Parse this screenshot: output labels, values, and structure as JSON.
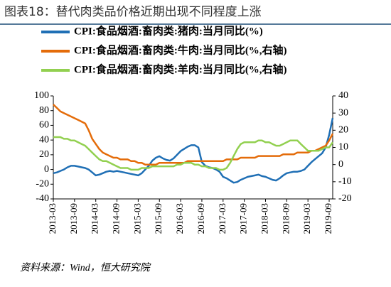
{
  "chart_data": {
    "type": "line",
    "title": "图表18：替代肉类品价格近期出现不同程度上涨",
    "source": "资料来源：Wind，恒大研究院",
    "categories": [
      "2013-03",
      null,
      null,
      null,
      null,
      null,
      "2013-09",
      null,
      null,
      null,
      null,
      null,
      "2014-03",
      null,
      null,
      null,
      null,
      null,
      "2014-09",
      null,
      null,
      null,
      null,
      null,
      "2015-03",
      null,
      null,
      null,
      null,
      null,
      "2015-09",
      null,
      null,
      null,
      null,
      null,
      "2016-03",
      null,
      null,
      null,
      null,
      null,
      "2016-09",
      null,
      null,
      null,
      null,
      null,
      "2017-03",
      null,
      null,
      null,
      null,
      null,
      "2017-09",
      null,
      null,
      null,
      null,
      null,
      "2018-03",
      null,
      null,
      null,
      null,
      null,
      "2018-09",
      null,
      null,
      null,
      null,
      null,
      "2019-03",
      null,
      null,
      null,
      null,
      null,
      "2019-09",
      null
    ],
    "series": [
      {
        "name": "CPI:食品烟酒:畜肉类:猪肉:当月同比(%)",
        "color": "#1f6fb5",
        "axis": "y",
        "values": [
          -5,
          -4,
          -2,
          0,
          3,
          5,
          5,
          4,
          3,
          2,
          0,
          -4,
          -8,
          -7,
          -5,
          -3,
          -2,
          -3,
          -2,
          -3,
          -4,
          -5,
          -6,
          -7,
          -8,
          -5,
          0,
          5,
          12,
          16,
          18,
          15,
          13,
          12,
          15,
          20,
          25,
          28,
          31,
          33,
          33,
          30,
          10,
          5,
          3,
          2,
          0,
          -3,
          -10,
          -12,
          -15,
          -18,
          -17,
          -14,
          -12,
          -10,
          -9,
          -8,
          -7,
          -9,
          -10,
          -12,
          -14,
          -15,
          -12,
          -8,
          -5,
          -4,
          -3,
          -3,
          -2,
          0,
          5,
          10,
          14,
          18,
          22,
          30,
          47,
          70
        ]
      },
      {
        "name": "CPI:食品烟酒:畜肉类:牛肉:当月同比(%,右轴)",
        "color": "#e46c0a",
        "axis": "y2",
        "values": [
          35,
          33,
          31,
          30,
          29,
          28,
          27,
          26,
          25,
          24,
          20,
          15,
          12,
          9,
          7,
          6,
          5,
          4,
          4,
          3,
          3,
          3,
          2,
          2,
          1,
          1,
          0,
          0,
          0,
          0,
          1,
          1,
          1,
          1,
          1,
          1,
          1,
          1,
          2,
          2,
          2,
          2,
          2,
          2,
          2,
          2,
          2,
          2,
          2,
          3,
          3,
          3,
          3,
          4,
          4,
          4,
          4,
          4,
          5,
          5,
          5,
          5,
          5,
          5,
          5,
          6,
          6,
          6,
          6,
          7,
          7,
          7,
          7,
          8,
          8,
          9,
          10,
          11,
          14,
          18
        ]
      },
      {
        "name": "CPI:食品烟酒:畜肉类:羊肉:当月同比(%,右轴)",
        "color": "#92d050",
        "axis": "y2",
        "values": [
          16,
          16,
          16,
          15,
          15,
          14,
          14,
          13,
          12,
          11,
          9,
          7,
          5,
          3,
          2,
          2,
          1,
          0,
          -1,
          -2,
          -2,
          -2,
          -3,
          -3,
          -3,
          -2,
          -2,
          -2,
          -1,
          -1,
          -1,
          -1,
          -1,
          -1,
          -1,
          0,
          0,
          1,
          1,
          1,
          0,
          0,
          -1,
          -1,
          -2,
          -2,
          -2,
          -3,
          -3,
          -2,
          1,
          5,
          9,
          12,
          13,
          13,
          13,
          13,
          14,
          14,
          13,
          13,
          12,
          11,
          11,
          12,
          13,
          14,
          14,
          14,
          12,
          10,
          8,
          8,
          8,
          8,
          9,
          10,
          10,
          13
        ]
      }
    ],
    "ylim": [
      -40,
      100
    ],
    "yticks": [
      -40,
      -20,
      0,
      20,
      40,
      60,
      80,
      100
    ],
    "y2lim": [
      -20,
      40
    ],
    "y2ticks": [
      -20,
      -10,
      0,
      10,
      20,
      30,
      40
    ]
  }
}
